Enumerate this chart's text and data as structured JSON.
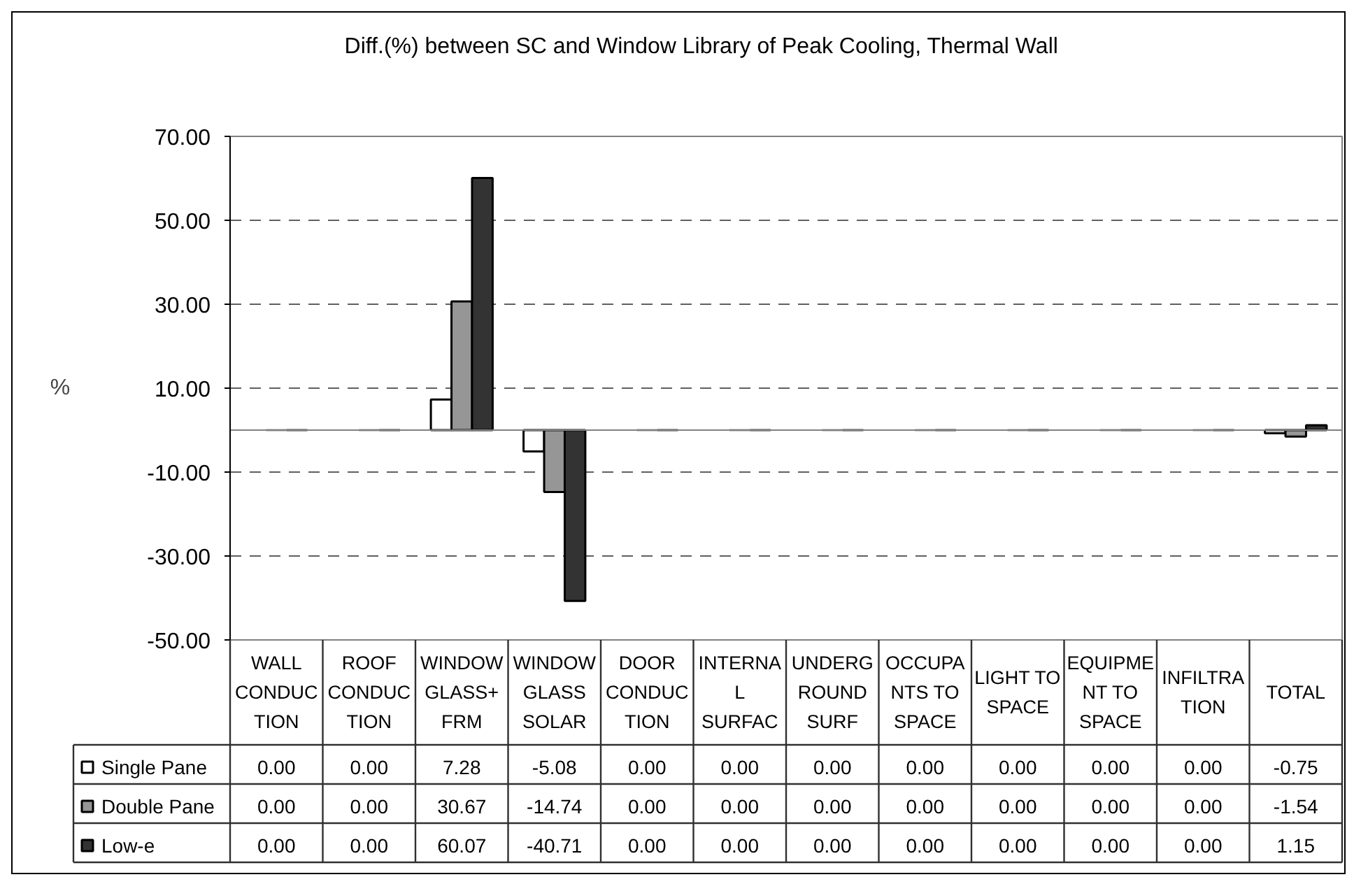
{
  "chart_data": {
    "type": "bar",
    "title": "Diff.(%) between SC and Window Library of Peak Cooling, Thermal Wall",
    "ylabel": "%",
    "categories": [
      "WALL\nCONDUC\nTION",
      "ROOF\nCONDUC\nTION",
      "WINDOW\nGLASS+\nFRM",
      "WINDOW\nGLASS\nSOLAR",
      "DOOR\nCONDUC\nTION",
      "INTERNA\nL\nSURFAC",
      "UNDERG\nROUND\nSURF",
      "OCCUPA\nNTS TO\nSPACE",
      "LIGHT TO\nSPACE",
      "EQUIPME\nNT TO\nSPACE",
      "INFILTRA\nTION",
      "TOTAL"
    ],
    "series": [
      {
        "name": "Single Pane",
        "color": "#ffffff",
        "values": [
          0,
          0,
          7.28,
          -5.08,
          0,
          0,
          0,
          0,
          0,
          0,
          0,
          -0.75
        ],
        "value_labels": [
          "0.00",
          "0.00",
          "7.28",
          "-5.08",
          "0.00",
          "0.00",
          "0.00",
          "0.00",
          "0.00",
          "0.00",
          "0.00",
          "-0.75"
        ]
      },
      {
        "name": "Double Pane",
        "color": "#969696",
        "values": [
          0,
          0,
          30.67,
          -14.74,
          0,
          0,
          0,
          0,
          0,
          0,
          0,
          -1.54
        ],
        "value_labels": [
          "0.00",
          "0.00",
          "30.67",
          "-14.74",
          "0.00",
          "0.00",
          "0.00",
          "0.00",
          "0.00",
          "0.00",
          "0.00",
          "-1.54"
        ]
      },
      {
        "name": "Low-e",
        "color": "#333333",
        "values": [
          0,
          0,
          60.07,
          -40.71,
          0,
          0,
          0,
          0,
          0,
          0,
          0,
          1.15
        ],
        "value_labels": [
          "0.00",
          "0.00",
          "60.07",
          "-40.71",
          "0.00",
          "0.00",
          "0.00",
          "0.00",
          "0.00",
          "0.00",
          "0.00",
          "1.15"
        ]
      }
    ],
    "ylim": [
      -50,
      70
    ],
    "yticks": [
      {
        "value": 70,
        "label": "70.00"
      },
      {
        "value": 50,
        "label": "50.00"
      },
      {
        "value": 30,
        "label": "30.00"
      },
      {
        "value": 10,
        "label": "10.00"
      },
      {
        "value": -10,
        "label": "-10.00"
      },
      {
        "value": -30,
        "label": "-30.00"
      },
      {
        "value": -50,
        "label": "-50.00"
      }
    ],
    "grid": "y",
    "legend": "bottom"
  }
}
